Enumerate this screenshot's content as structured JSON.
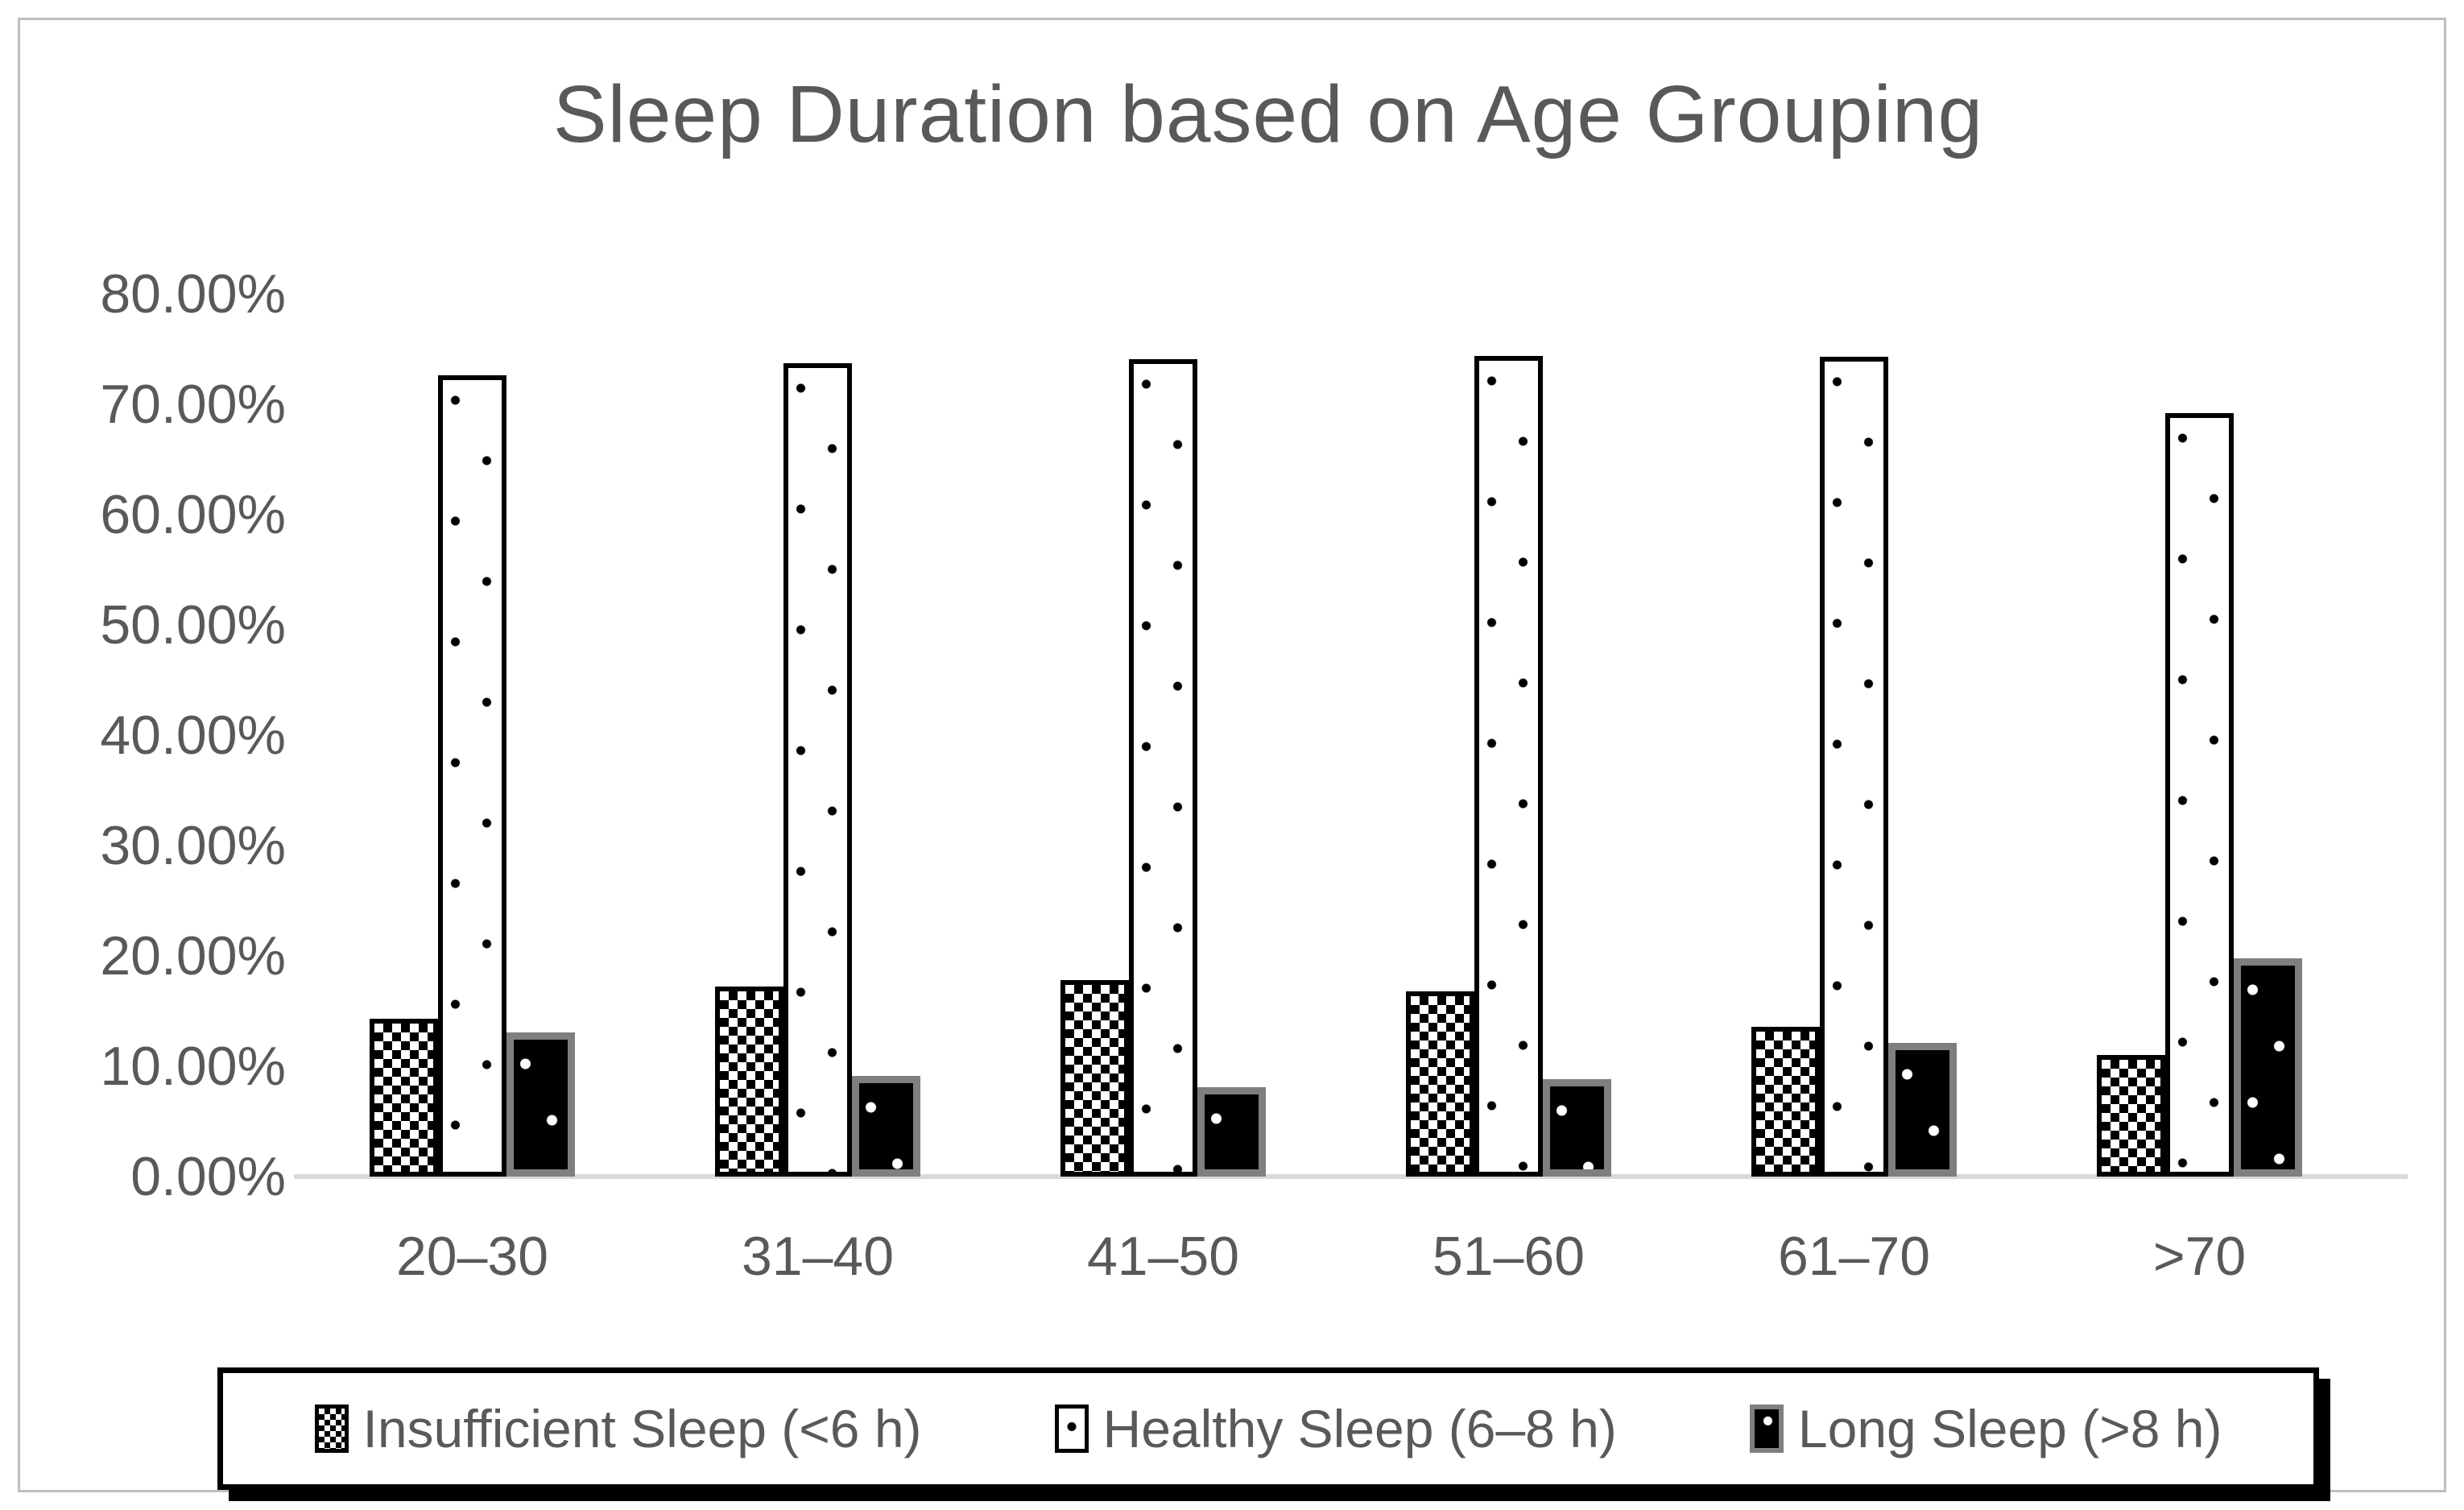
{
  "figure": {
    "title": "Sleep Duration based on Age Grouping"
  },
  "colors": {
    "text": "#595959",
    "axis_line": "#d9d9d9",
    "bar_outline": "#000000",
    "long_bar_outline": "#7f7f7f",
    "background": "#ffffff"
  },
  "chart_data": {
    "type": "bar",
    "title": "Sleep Duration based on Age Grouping",
    "categories": [
      "20–30",
      "31–40",
      "41–50",
      "51–60",
      "61–70",
      ">70"
    ],
    "series": [
      {
        "key": "insufficient",
        "name": "Insufficient Sleep (<6 h)",
        "pattern": "checkerboard",
        "values": [
          14.3,
          17.2,
          17.8,
          16.8,
          13.6,
          11.0
        ]
      },
      {
        "key": "healthy",
        "name": "Healthy Sleep (6–8 h)",
        "pattern": "white-dotted",
        "values": [
          72.6,
          73.7,
          74.1,
          74.4,
          74.3,
          69.2
        ]
      },
      {
        "key": "long",
        "name": "Long Sleep (>8 h)",
        "pattern": "black-dotted",
        "values": [
          13.1,
          9.1,
          8.1,
          8.8,
          12.1,
          19.8
        ]
      }
    ],
    "unit": "percent",
    "ylim": [
      0,
      80
    ],
    "yticks": [
      {
        "value": 0,
        "label": "0.00%"
      },
      {
        "value": 10,
        "label": "10.00%"
      },
      {
        "value": 20,
        "label": "20.00%"
      },
      {
        "value": 30,
        "label": "30.00%"
      },
      {
        "value": 40,
        "label": "40.00%"
      },
      {
        "value": 50,
        "label": "50.00%"
      },
      {
        "value": 60,
        "label": "60.00%"
      },
      {
        "value": 70,
        "label": "70.00%"
      },
      {
        "value": 80,
        "label": "80.00%"
      }
    ],
    "grid": false,
    "legend_position": "bottom"
  }
}
